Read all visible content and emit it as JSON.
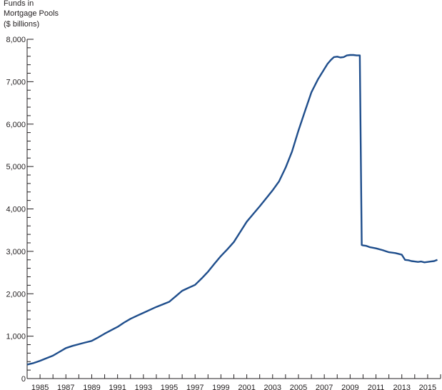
{
  "chart_data": {
    "type": "line",
    "title": "",
    "ylabel_lines": [
      "Funds in",
      "Mortgage Pools",
      "($ billions)"
    ],
    "xlabel": "",
    "xlim": [
      1984,
      2016
    ],
    "ylim": [
      0,
      8000
    ],
    "x_ticks": [
      1985,
      1987,
      1989,
      1991,
      1993,
      1995,
      1997,
      1999,
      2001,
      2003,
      2005,
      2007,
      2009,
      2011,
      2013,
      2015
    ],
    "y_ticks": [
      0,
      1000,
      2000,
      3000,
      4000,
      5000,
      6000,
      7000,
      8000
    ],
    "y_tick_labels": [
      "0",
      "1,000",
      "2,000",
      "3,000",
      "4,000",
      "5,000",
      "6,000",
      "7,000",
      "8,000"
    ],
    "grid": false,
    "line_color": "#1f4e8c",
    "series": [
      {
        "x": [
          1984.0,
          1984.5,
          1985.0,
          1985.5,
          1986.0,
          1986.5,
          1987.0,
          1987.5,
          1988.0,
          1988.5,
          1989.0,
          1989.5,
          1990.0,
          1990.5,
          1991.0,
          1991.5,
          1992.0,
          1992.5,
          1993.0,
          1993.5,
          1994.0,
          1994.5,
          1995.0,
          1995.5,
          1996.0,
          1996.5,
          1997.0,
          1997.5,
          1998.0,
          1998.5,
          1999.0,
          1999.5,
          2000.0,
          2000.5,
          2001.0,
          2001.5,
          2002.0,
          2002.5,
          2003.0,
          2003.5,
          2004.0,
          2004.5,
          2005.0,
          2005.5,
          2006.0,
          2006.5,
          2007.0,
          2007.25,
          2007.5,
          2007.75,
          2008.0,
          2008.25,
          2008.5,
          2008.75,
          2009.0,
          2009.25,
          2009.5,
          2009.75,
          2009.9,
          2010.0,
          2010.25,
          2010.5,
          2011.0,
          2011.5,
          2012.0,
          2012.5,
          2013.0,
          2013.25,
          2013.5,
          2013.75,
          2014.0,
          2014.25,
          2014.5,
          2014.75,
          2015.0,
          2015.25,
          2015.5,
          2015.75
        ],
        "y": [
          330,
          365,
          420,
          480,
          540,
          630,
          720,
          770,
          810,
          850,
          890,
          970,
          1060,
          1140,
          1220,
          1320,
          1410,
          1480,
          1550,
          1620,
          1690,
          1750,
          1810,
          1940,
          2070,
          2140,
          2210,
          2360,
          2520,
          2710,
          2890,
          3050,
          3220,
          3460,
          3700,
          3880,
          4060,
          4250,
          4440,
          4650,
          4970,
          5350,
          5850,
          6300,
          6750,
          7050,
          7300,
          7420,
          7510,
          7580,
          7590,
          7570,
          7580,
          7620,
          7630,
          7630,
          7620,
          7620,
          3150,
          3140,
          3130,
          3100,
          3070,
          3030,
          2980,
          2960,
          2920,
          2800,
          2790,
          2770,
          2760,
          2750,
          2760,
          2740,
          2750,
          2760,
          2770,
          2800
        ]
      }
    ]
  }
}
